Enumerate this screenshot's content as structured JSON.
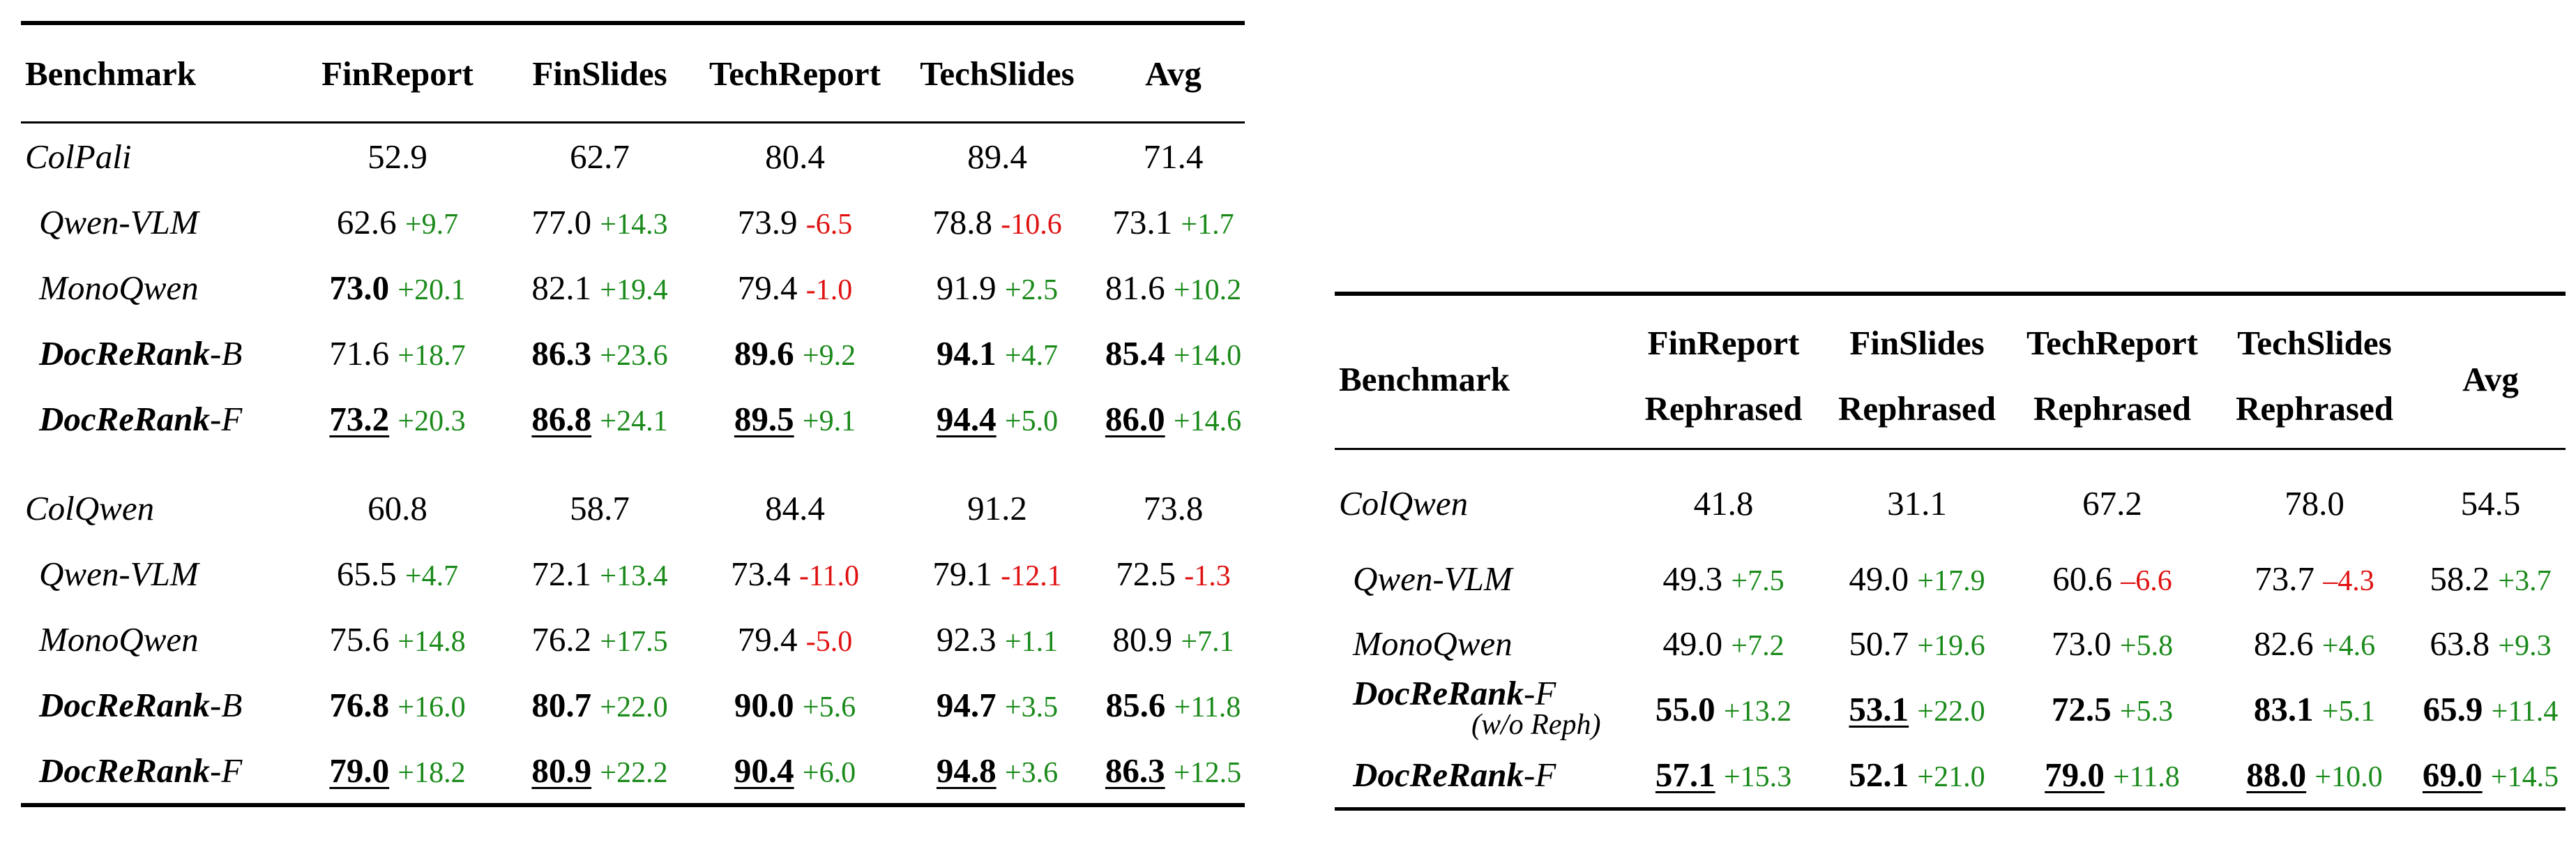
{
  "left_table": {
    "header": [
      "Benchmark",
      "FinReport",
      "FinSlides",
      "TechReport",
      "TechSlides",
      "Avg"
    ],
    "groups": [
      {
        "rows": [
          {
            "model_bold": "",
            "model_rest": "ColPali",
            "style": "base",
            "cells": [
              {
                "v": "52.9",
                "d": "",
                "s": ""
              },
              {
                "v": "62.7",
                "d": "",
                "s": ""
              },
              {
                "v": "80.4",
                "d": "",
                "s": ""
              },
              {
                "v": "89.4",
                "d": "",
                "s": ""
              },
              {
                "v": "71.4",
                "d": "",
                "s": ""
              }
            ]
          },
          {
            "model_bold": "",
            "model_rest": "Qwen-VLM",
            "style": "sub",
            "cells": [
              {
                "v": "62.6",
                "d": "+9.7",
                "s": ""
              },
              {
                "v": "77.0",
                "d": "+14.3",
                "s": ""
              },
              {
                "v": "73.9",
                "d": "-6.5",
                "s": ""
              },
              {
                "v": "78.8",
                "d": "-10.6",
                "s": ""
              },
              {
                "v": "73.1",
                "d": "+1.7",
                "s": ""
              }
            ]
          },
          {
            "model_bold": "",
            "model_rest": "MonoQwen",
            "style": "sub",
            "cells": [
              {
                "v": "73.0",
                "d": "+20.1",
                "s": "b"
              },
              {
                "v": "82.1",
                "d": "+19.4",
                "s": ""
              },
              {
                "v": "79.4",
                "d": "-1.0",
                "s": ""
              },
              {
                "v": "91.9",
                "d": "+2.5",
                "s": ""
              },
              {
                "v": "81.6",
                "d": "+10.2",
                "s": ""
              }
            ]
          },
          {
            "model_bold": "DocReRank",
            "model_rest": "-B",
            "style": "strong",
            "cells": [
              {
                "v": "71.6",
                "d": "+18.7",
                "s": ""
              },
              {
                "v": "86.3",
                "d": "+23.6",
                "s": "b"
              },
              {
                "v": "89.6",
                "d": "+9.2",
                "s": "b"
              },
              {
                "v": "94.1",
                "d": "+4.7",
                "s": "b"
              },
              {
                "v": "85.4",
                "d": "+14.0",
                "s": "b"
              }
            ]
          },
          {
            "model_bold": "DocReRank",
            "model_rest": "-F",
            "style": "strong",
            "cells": [
              {
                "v": "73.2",
                "d": "+20.3",
                "s": "bu"
              },
              {
                "v": "86.8",
                "d": "+24.1",
                "s": "bu"
              },
              {
                "v": "89.5",
                "d": "+9.1",
                "s": "bu"
              },
              {
                "v": "94.4",
                "d": "+5.0",
                "s": "bu"
              },
              {
                "v": "86.0",
                "d": "+14.6",
                "s": "bu"
              }
            ]
          }
        ]
      },
      {
        "rows": [
          {
            "model_bold": "",
            "model_rest": "ColQwen",
            "style": "base",
            "cells": [
              {
                "v": "60.8",
                "d": "",
                "s": ""
              },
              {
                "v": "58.7",
                "d": "",
                "s": ""
              },
              {
                "v": "84.4",
                "d": "",
                "s": ""
              },
              {
                "v": "91.2",
                "d": "",
                "s": ""
              },
              {
                "v": "73.8",
                "d": "",
                "s": ""
              }
            ]
          },
          {
            "model_bold": "",
            "model_rest": "Qwen-VLM",
            "style": "sub",
            "cells": [
              {
                "v": "65.5",
                "d": "+4.7",
                "s": ""
              },
              {
                "v": "72.1",
                "d": "+13.4",
                "s": ""
              },
              {
                "v": "73.4",
                "d": "-11.0",
                "s": ""
              },
              {
                "v": "79.1",
                "d": "-12.1",
                "s": ""
              },
              {
                "v": "72.5",
                "d": "-1.3",
                "s": ""
              }
            ]
          },
          {
            "model_bold": "",
            "model_rest": "MonoQwen",
            "style": "sub",
            "cells": [
              {
                "v": "75.6",
                "d": "+14.8",
                "s": ""
              },
              {
                "v": "76.2",
                "d": "+17.5",
                "s": ""
              },
              {
                "v": "79.4",
                "d": "-5.0",
                "s": ""
              },
              {
                "v": "92.3",
                "d": "+1.1",
                "s": ""
              },
              {
                "v": "80.9",
                "d": "+7.1",
                "s": ""
              }
            ]
          },
          {
            "model_bold": "DocReRank",
            "model_rest": "-B",
            "style": "strong",
            "cells": [
              {
                "v": "76.8",
                "d": "+16.0",
                "s": "b"
              },
              {
                "v": "80.7",
                "d": "+22.0",
                "s": "b"
              },
              {
                "v": "90.0",
                "d": "+5.6",
                "s": "b"
              },
              {
                "v": "94.7",
                "d": "+3.5",
                "s": "b"
              },
              {
                "v": "85.6",
                "d": "+11.8",
                "s": "b"
              }
            ]
          },
          {
            "model_bold": "DocReRank",
            "model_rest": "-F",
            "style": "strong",
            "cells": [
              {
                "v": "79.0",
                "d": "+18.2",
                "s": "bu"
              },
              {
                "v": "80.9",
                "d": "+22.2",
                "s": "bu"
              },
              {
                "v": "90.4",
                "d": "+6.0",
                "s": "bu"
              },
              {
                "v": "94.8",
                "d": "+3.6",
                "s": "bu"
              },
              {
                "v": "86.3",
                "d": "+12.5",
                "s": "bu"
              }
            ]
          }
        ]
      }
    ]
  },
  "right_table": {
    "header_benchmark": "Benchmark",
    "header_line1": [
      "FinReport",
      "FinSlides",
      "TechReport",
      "TechSlides"
    ],
    "header_line2": [
      "Rephrased",
      "Rephrased",
      "Rephrased",
      "Rephrased"
    ],
    "header_avg": "Avg",
    "rows": [
      {
        "model_bold": "",
        "model_rest": "ColQwen",
        "note": "",
        "style": "base",
        "cells": [
          {
            "v": "41.8",
            "d": "",
            "s": ""
          },
          {
            "v": "31.1",
            "d": "",
            "s": ""
          },
          {
            "v": "67.2",
            "d": "",
            "s": ""
          },
          {
            "v": "78.0",
            "d": "",
            "s": ""
          },
          {
            "v": "54.5",
            "d": "",
            "s": ""
          }
        ]
      },
      {
        "model_bold": "",
        "model_rest": "Qwen-VLM",
        "note": "",
        "style": "sub",
        "cells": [
          {
            "v": "49.3",
            "d": "+7.5",
            "s": ""
          },
          {
            "v": "49.0",
            "d": "+17.9",
            "s": ""
          },
          {
            "v": "60.6",
            "d": "–6.6",
            "s": ""
          },
          {
            "v": "73.7",
            "d": "–4.3",
            "s": ""
          },
          {
            "v": "58.2",
            "d": "+3.7",
            "s": ""
          }
        ]
      },
      {
        "model_bold": "",
        "model_rest": "MonoQwen",
        "note": "",
        "style": "sub",
        "cells": [
          {
            "v": "49.0",
            "d": "+7.2",
            "s": ""
          },
          {
            "v": "50.7",
            "d": "+19.6",
            "s": ""
          },
          {
            "v": "73.0",
            "d": "+5.8",
            "s": ""
          },
          {
            "v": "82.6",
            "d": "+4.6",
            "s": ""
          },
          {
            "v": "63.8",
            "d": "+9.3",
            "s": ""
          }
        ]
      },
      {
        "model_bold": "DocReRank",
        "model_rest": "-F",
        "note": "(w/o Reph)",
        "style": "strong",
        "cells": [
          {
            "v": "55.0",
            "d": "+13.2",
            "s": "b"
          },
          {
            "v": "53.1",
            "d": "+22.0",
            "s": "bu"
          },
          {
            "v": "72.5",
            "d": "+5.3",
            "s": "b"
          },
          {
            "v": "83.1",
            "d": "+5.1",
            "s": "b"
          },
          {
            "v": "65.9",
            "d": "+11.4",
            "s": "b"
          }
        ]
      },
      {
        "model_bold": "DocReRank",
        "model_rest": "-F",
        "note": "",
        "style": "strong",
        "cells": [
          {
            "v": "57.1",
            "d": "+15.3",
            "s": "bu"
          },
          {
            "v": "52.1",
            "d": "+21.0",
            "s": "b"
          },
          {
            "v": "79.0",
            "d": "+11.8",
            "s": "bu"
          },
          {
            "v": "88.0",
            "d": "+10.0",
            "s": "bu"
          },
          {
            "v": "69.0",
            "d": "+14.5",
            "s": "bu"
          }
        ]
      }
    ]
  },
  "colors": {
    "positive": "#1a8a1a",
    "negative": "#e01010"
  }
}
